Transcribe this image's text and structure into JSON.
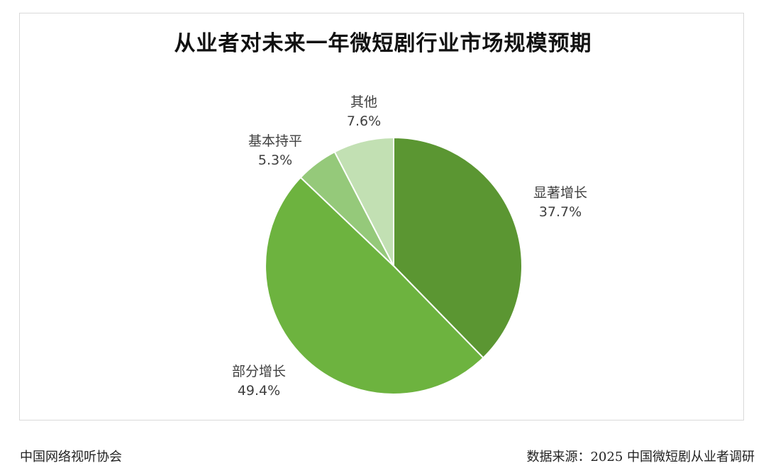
{
  "chart_data": {
    "type": "pie",
    "title": "从业者对未来一年微短剧行业市场规模预期",
    "slices": [
      {
        "label": "显著增长",
        "value": 37.7,
        "value_text": "37.7%",
        "color": "#5b9632"
      },
      {
        "label": "部分增长",
        "value": 49.4,
        "value_text": "49.4%",
        "color": "#6db33f"
      },
      {
        "label": "基本持平",
        "value": 5.3,
        "value_text": "5.3%",
        "color": "#95c97a"
      },
      {
        "label": "其他",
        "value": 7.6,
        "value_text": "7.6%",
        "color": "#c2e0b3"
      }
    ],
    "start_direction": "top",
    "slice_order": "clockwise",
    "slice_border_color": "#ffffff",
    "legend": "none"
  },
  "footer": {
    "publisher": "中国网络视听协会",
    "source": "数据来源：2025 中国微短剧从业者调研"
  }
}
